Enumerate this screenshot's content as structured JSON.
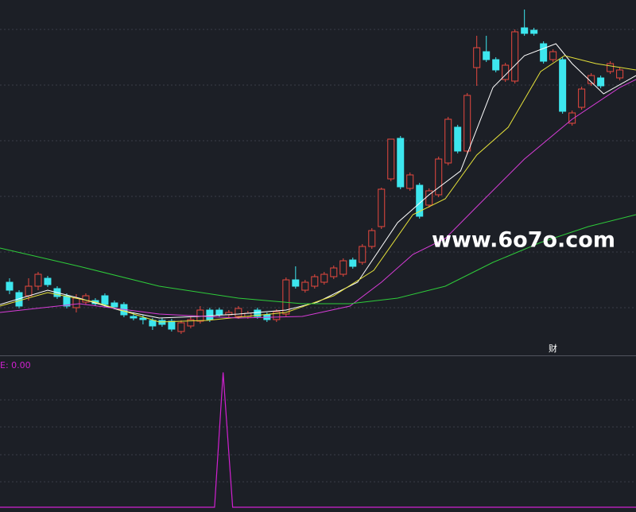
{
  "chart_data": [
    {
      "type": "candlestick",
      "xlim": [
        -1,
        65.7
      ],
      "ylim": [
        0,
        447
      ],
      "up_color": "#e8483f",
      "down_color": "#3de6ee",
      "open": [
        92,
        79,
        75,
        87,
        97,
        84,
        75,
        60,
        67,
        69,
        75,
        66,
        64,
        49,
        47,
        44,
        44,
        43,
        30,
        37,
        43,
        57,
        57,
        51,
        49,
        49,
        57,
        51,
        45,
        52,
        95,
        82,
        87,
        92,
        99,
        102,
        120,
        117,
        137,
        162,
        222,
        273,
        210,
        214,
        189,
        202,
        242,
        287,
        257,
        362,
        382,
        372,
        347,
        345,
        412,
        409,
        392,
        372,
        372,
        292,
        312,
        342,
        349,
        357,
        349
      ],
      "close": [
        82,
        62,
        87,
        102,
        89,
        74,
        62,
        72,
        75,
        65,
        64,
        61,
        51,
        47,
        45,
        37,
        39,
        33,
        41,
        45,
        57,
        45,
        51,
        54,
        59,
        53,
        49,
        45,
        55,
        95,
        87,
        92,
        99,
        102,
        110,
        119,
        112,
        137,
        157,
        209,
        272,
        212,
        227,
        175,
        207,
        247,
        297,
        257,
        327,
        387,
        372,
        359,
        365,
        407,
        405,
        405,
        370,
        382,
        307,
        305,
        335,
        352,
        339,
        367,
        359
      ],
      "high": [
        97,
        82,
        97,
        105,
        100,
        87,
        78,
        77,
        78,
        72,
        78,
        69,
        67,
        54,
        51,
        47,
        47,
        46,
        44,
        48,
        62,
        60,
        60,
        57,
        62,
        56,
        60,
        54,
        58,
        98,
        112,
        95,
        102,
        105,
        113,
        122,
        123,
        140,
        160,
        211,
        272,
        276,
        230,
        217,
        210,
        250,
        300,
        290,
        330,
        402,
        402,
        375,
        368,
        410,
        435,
        412,
        395,
        385,
        375,
        308,
        338,
        355,
        352,
        370,
        362
      ],
      "low": [
        77,
        59,
        69,
        82,
        86,
        71,
        59,
        54,
        64,
        62,
        61,
        58,
        48,
        44,
        39,
        32,
        36,
        30,
        27,
        34,
        40,
        42,
        48,
        48,
        46,
        46,
        46,
        42,
        42,
        49,
        84,
        79,
        84,
        89,
        96,
        99,
        109,
        114,
        134,
        159,
        219,
        209,
        207,
        172,
        186,
        199,
        239,
        254,
        254,
        339,
        369,
        356,
        344,
        342,
        402,
        402,
        367,
        369,
        304,
        289,
        309,
        339,
        336,
        354,
        346
      ],
      "lines": [
        {
          "color": "#ffffff",
          "x": [
            -1,
            4,
            7.3,
            11.5,
            15.7,
            19.8,
            24,
            29,
            32.3,
            36.5,
            40.7,
            44,
            47.3,
            50.7,
            54,
            57.3,
            59,
            62.3,
            65.7
          ],
          "values": [
            64,
            82,
            72,
            57,
            47,
            49,
            52,
            57,
            67,
            92,
            167,
            202,
            232,
            337,
            377,
            392,
            367,
            329,
            352
          ]
        },
        {
          "color": "#e6e23a",
          "x": [
            -1,
            4,
            9,
            15.7,
            20.7,
            29,
            34,
            38.2,
            42.3,
            45.7,
            49,
            52.3,
            55.7,
            58.2,
            61.5,
            65.7
          ],
          "values": [
            62,
            79,
            67,
            42,
            44,
            54,
            75,
            107,
            177,
            197,
            252,
            287,
            357,
            377,
            367,
            359
          ]
        },
        {
          "color": "#d83cd8",
          "x": [
            -1,
            7.3,
            15.7,
            24,
            30.7,
            35.7,
            39,
            42.3,
            45.7,
            49,
            54,
            59,
            64,
            65.7
          ],
          "values": [
            54,
            65,
            52,
            47,
            49,
            62,
            92,
            127,
            147,
            187,
            247,
            297,
            337,
            347
          ]
        },
        {
          "color": "#2ecc3a",
          "x": [
            -1,
            7.3,
            15.7,
            24,
            30.7,
            35.7,
            40.7,
            45.7,
            50.7,
            55.7,
            60.7,
            65.7
          ],
          "values": [
            135,
            112,
            87,
            72,
            65,
            65,
            72,
            87,
            117,
            142,
            162,
            177
          ]
        }
      ]
    },
    {
      "type": "line",
      "title": "E: 0.00",
      "color": "#d020d0",
      "xlim": [
        -1,
        65.7
      ],
      "ylim": [
        0,
        1.12
      ],
      "x": [
        -1,
        21.5,
        22.4,
        23.4,
        65.7
      ],
      "values": [
        0,
        0,
        1,
        0,
        0
      ]
    }
  ],
  "watermark": "www.6o7o.com",
  "marker": "财"
}
